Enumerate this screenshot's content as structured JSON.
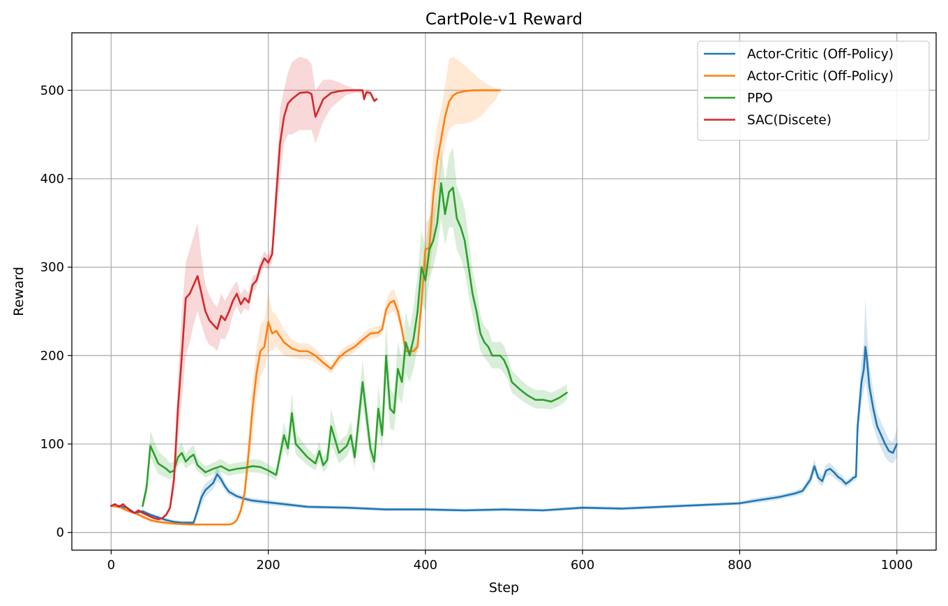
{
  "chart_data": {
    "type": "line",
    "title": "CartPole-v1 Reward",
    "xlabel": "Step",
    "ylabel": "Reward",
    "xlim": [
      -50,
      1050
    ],
    "ylim": [
      -20,
      565
    ],
    "xticks": [
      0,
      200,
      400,
      600,
      800,
      1000
    ],
    "yticks": [
      0,
      100,
      200,
      300,
      400,
      500
    ],
    "grid": true,
    "legend_position": "top-right",
    "band_opacity": 0.18,
    "series": [
      {
        "name": "Actor-Critic (Off-Policy)",
        "color": "#1f77b4",
        "x": [
          0,
          10,
          20,
          30,
          40,
          50,
          60,
          70,
          80,
          90,
          100,
          105,
          110,
          115,
          120,
          125,
          130,
          135,
          140,
          145,
          150,
          160,
          170,
          180,
          200,
          250,
          300,
          350,
          400,
          450,
          500,
          550,
          600,
          650,
          700,
          750,
          800,
          820,
          850,
          870,
          880,
          890,
          895,
          900,
          905,
          910,
          915,
          920,
          925,
          930,
          935,
          940,
          945,
          948,
          950,
          955,
          958,
          960,
          962,
          965,
          970,
          975,
          980,
          985,
          990,
          995,
          1000
        ],
        "y": [
          30,
          30,
          28,
          22,
          24,
          20,
          17,
          14,
          12,
          11,
          11,
          11,
          25,
          40,
          48,
          52,
          56,
          66,
          60,
          52,
          46,
          41,
          38,
          36,
          34,
          29,
          28,
          26,
          26,
          25,
          26,
          25,
          28,
          27,
          29,
          31,
          33,
          36,
          40,
          44,
          47,
          60,
          75,
          62,
          58,
          70,
          72,
          68,
          63,
          60,
          55,
          58,
          62,
          63,
          120,
          170,
          185,
          210,
          195,
          165,
          140,
          120,
          110,
          100,
          92,
          90,
          100
        ],
        "lower": [
          29,
          29,
          26,
          20,
          22,
          18,
          15,
          12,
          10,
          9,
          9,
          9,
          19,
          32,
          40,
          45,
          49,
          58,
          54,
          47,
          42,
          38,
          35,
          33,
          31,
          27,
          26,
          24,
          24,
          23,
          24,
          23,
          26,
          25,
          27,
          29,
          31,
          33,
          37,
          41,
          43,
          54,
          67,
          56,
          52,
          63,
          65,
          62,
          58,
          55,
          51,
          54,
          58,
          59,
          105,
          145,
          160,
          170,
          160,
          140,
          120,
          105,
          95,
          85,
          80,
          78,
          85
        ],
        "upper": [
          31,
          31,
          30,
          24,
          26,
          22,
          19,
          16,
          14,
          13,
          13,
          13,
          31,
          48,
          56,
          59,
          63,
          74,
          66,
          57,
          50,
          44,
          41,
          39,
          37,
          31,
          30,
          28,
          28,
          27,
          28,
          27,
          30,
          29,
          31,
          33,
          35,
          39,
          43,
          47,
          51,
          66,
          83,
          68,
          64,
          77,
          79,
          74,
          68,
          65,
          59,
          62,
          66,
          67,
          135,
          195,
          215,
          265,
          230,
          190,
          160,
          135,
          125,
          115,
          105,
          102,
          118
        ]
      },
      {
        "name": "Actor-Critic (Off-Policy)",
        "color": "#ff7f0e",
        "x": [
          0,
          10,
          20,
          30,
          40,
          50,
          60,
          80,
          100,
          120,
          140,
          150,
          155,
          160,
          165,
          170,
          175,
          180,
          185,
          190,
          195,
          200,
          205,
          210,
          220,
          230,
          240,
          250,
          260,
          270,
          280,
          290,
          300,
          310,
          320,
          330,
          340,
          345,
          350,
          355,
          360,
          365,
          370,
          375,
          380,
          385,
          390,
          395,
          400,
          405,
          410,
          415,
          420,
          425,
          430,
          435,
          440,
          450,
          460,
          470,
          480,
          490,
          495
        ],
        "y": [
          30,
          29,
          25,
          22,
          18,
          14,
          12,
          10,
          9,
          9,
          9,
          9,
          10,
          14,
          25,
          45,
          90,
          140,
          180,
          205,
          210,
          238,
          225,
          228,
          215,
          208,
          205,
          205,
          200,
          192,
          185,
          198,
          205,
          210,
          218,
          225,
          226,
          230,
          252,
          260,
          262,
          250,
          230,
          205,
          205,
          205,
          210,
          260,
          320,
          322,
          380,
          420,
          445,
          470,
          487,
          494,
          497,
          499,
          500,
          500,
          500,
          500,
          500
        ],
        "lower": [
          29,
          27,
          23,
          20,
          16,
          12,
          10,
          8,
          8,
          8,
          8,
          8,
          9,
          12,
          20,
          35,
          70,
          110,
          150,
          175,
          185,
          205,
          205,
          210,
          200,
          198,
          196,
          196,
          192,
          186,
          180,
          192,
          199,
          204,
          212,
          219,
          221,
          224,
          244,
          248,
          250,
          240,
          222,
          200,
          200,
          200,
          204,
          240,
          290,
          290,
          330,
          380,
          410,
          440,
          455,
          460,
          462,
          462,
          465,
          470,
          480,
          490,
          500
        ],
        "upper": [
          31,
          31,
          27,
          24,
          20,
          16,
          14,
          12,
          10,
          10,
          10,
          10,
          11,
          16,
          30,
          55,
          110,
          170,
          210,
          235,
          240,
          272,
          250,
          246,
          230,
          218,
          214,
          214,
          208,
          198,
          190,
          204,
          211,
          216,
          224,
          231,
          233,
          236,
          262,
          272,
          275,
          262,
          238,
          210,
          210,
          210,
          216,
          280,
          350,
          355,
          430,
          460,
          480,
          505,
          535,
          538,
          535,
          528,
          520,
          512,
          506,
          502,
          500
        ]
      },
      {
        "name": "PPO",
        "color": "#2ca02c",
        "x": [
          40,
          45,
          50,
          55,
          60,
          65,
          70,
          75,
          80,
          85,
          90,
          95,
          100,
          105,
          110,
          115,
          120,
          130,
          140,
          150,
          160,
          170,
          180,
          190,
          200,
          210,
          220,
          225,
          230,
          235,
          240,
          250,
          260,
          265,
          270,
          275,
          280,
          290,
          300,
          305,
          310,
          320,
          330,
          335,
          340,
          345,
          350,
          355,
          360,
          365,
          370,
          375,
          380,
          385,
          390,
          395,
          400,
          405,
          410,
          415,
          420,
          425,
          430,
          435,
          440,
          445,
          450,
          455,
          460,
          465,
          470,
          475,
          480,
          485,
          490,
          495,
          500,
          505,
          510,
          520,
          530,
          540,
          550,
          560,
          570,
          575,
          580
        ],
        "y": [
          30,
          50,
          98,
          88,
          78,
          75,
          72,
          68,
          70,
          85,
          90,
          80,
          85,
          88,
          76,
          72,
          68,
          72,
          75,
          70,
          72,
          73,
          75,
          74,
          70,
          65,
          110,
          95,
          135,
          100,
          95,
          85,
          78,
          92,
          76,
          82,
          120,
          90,
          98,
          110,
          85,
          170,
          95,
          80,
          140,
          110,
          200,
          140,
          135,
          185,
          170,
          215,
          200,
          220,
          250,
          300,
          285,
          320,
          330,
          350,
          395,
          360,
          385,
          390,
          355,
          345,
          330,
          300,
          270,
          250,
          225,
          215,
          210,
          200,
          200,
          200,
          195,
          185,
          170,
          162,
          155,
          150,
          150,
          148,
          152,
          155,
          158
        ],
        "lower": [
          25,
          40,
          85,
          75,
          66,
          64,
          62,
          60,
          62,
          75,
          80,
          72,
          76,
          78,
          69,
          66,
          62,
          66,
          68,
          64,
          66,
          67,
          68,
          67,
          64,
          59,
          95,
          85,
          115,
          88,
          84,
          76,
          70,
          82,
          68,
          73,
          100,
          78,
          86,
          95,
          74,
          145,
          80,
          68,
          115,
          95,
          165,
          118,
          115,
          155,
          145,
          180,
          170,
          185,
          210,
          260,
          250,
          285,
          300,
          320,
          355,
          325,
          345,
          345,
          320,
          310,
          295,
          268,
          245,
          225,
          205,
          198,
          192,
          185,
          186,
          185,
          180,
          172,
          158,
          151,
          145,
          140,
          140,
          139,
          143,
          146,
          150
        ],
        "upper": [
          35,
          60,
          115,
          103,
          92,
          88,
          84,
          78,
          80,
          96,
          101,
          89,
          95,
          99,
          84,
          79,
          75,
          79,
          83,
          77,
          79,
          80,
          83,
          82,
          77,
          71,
          125,
          106,
          158,
          113,
          107,
          95,
          87,
          103,
          85,
          92,
          140,
          103,
          111,
          126,
          97,
          195,
          111,
          93,
          166,
          127,
          238,
          163,
          156,
          216,
          196,
          250,
          231,
          256,
          292,
          342,
          322,
          357,
          362,
          382,
          436,
          397,
          426,
          436,
          391,
          381,
          366,
          333,
          296,
          276,
          246,
          233,
          229,
          216,
          215,
          216,
          211,
          199,
          183,
          174,
          166,
          161,
          161,
          158,
          162,
          165,
          167
        ]
      },
      {
        "name": "SAC(Discete)",
        "color": "#d62728",
        "x": [
          0,
          5,
          10,
          15,
          20,
          25,
          30,
          35,
          40,
          45,
          50,
          55,
          60,
          65,
          70,
          75,
          80,
          85,
          90,
          95,
          100,
          105,
          110,
          115,
          120,
          125,
          130,
          135,
          140,
          145,
          150,
          155,
          160,
          165,
          170,
          175,
          180,
          185,
          190,
          195,
          200,
          205,
          210,
          215,
          220,
          225,
          230,
          240,
          250,
          255,
          260,
          270,
          280,
          290,
          300,
          310,
          320,
          322,
          325,
          330,
          335,
          338
        ],
        "y": [
          30,
          32,
          29,
          32,
          28,
          24,
          22,
          25,
          22,
          20,
          18,
          16,
          15,
          16,
          20,
          28,
          60,
          140,
          200,
          265,
          270,
          280,
          290,
          270,
          250,
          240,
          235,
          230,
          245,
          240,
          250,
          262,
          270,
          258,
          265,
          260,
          280,
          285,
          300,
          310,
          305,
          315,
          380,
          440,
          470,
          485,
          490,
          497,
          498,
          496,
          470,
          490,
          497,
          499,
          500,
          500,
          500,
          490,
          498,
          497,
          488,
          490
        ],
        "lower": [
          29,
          31,
          28,
          31,
          27,
          23,
          21,
          24,
          21,
          19,
          17,
          15,
          14,
          15,
          18,
          24,
          45,
          105,
          150,
          200,
          215,
          235,
          250,
          235,
          220,
          212,
          210,
          205,
          220,
          218,
          230,
          246,
          256,
          246,
          254,
          250,
          270,
          278,
          292,
          302,
          297,
          305,
          355,
          400,
          440,
          450,
          450,
          455,
          455,
          455,
          440,
          465,
          480,
          488,
          495,
          497,
          497,
          487,
          495,
          494,
          485,
          488
        ],
        "upper": [
          31,
          33,
          30,
          33,
          29,
          25,
          23,
          26,
          23,
          21,
          19,
          17,
          16,
          17,
          22,
          32,
          75,
          175,
          250,
          305,
          320,
          335,
          350,
          310,
          280,
          268,
          260,
          255,
          270,
          262,
          270,
          278,
          284,
          270,
          276,
          270,
          290,
          292,
          308,
          318,
          313,
          325,
          405,
          480,
          500,
          520,
          532,
          538,
          535,
          530,
          500,
          512,
          512,
          509,
          505,
          502,
          502,
          493,
          501,
          500,
          491,
          492
        ]
      }
    ]
  }
}
